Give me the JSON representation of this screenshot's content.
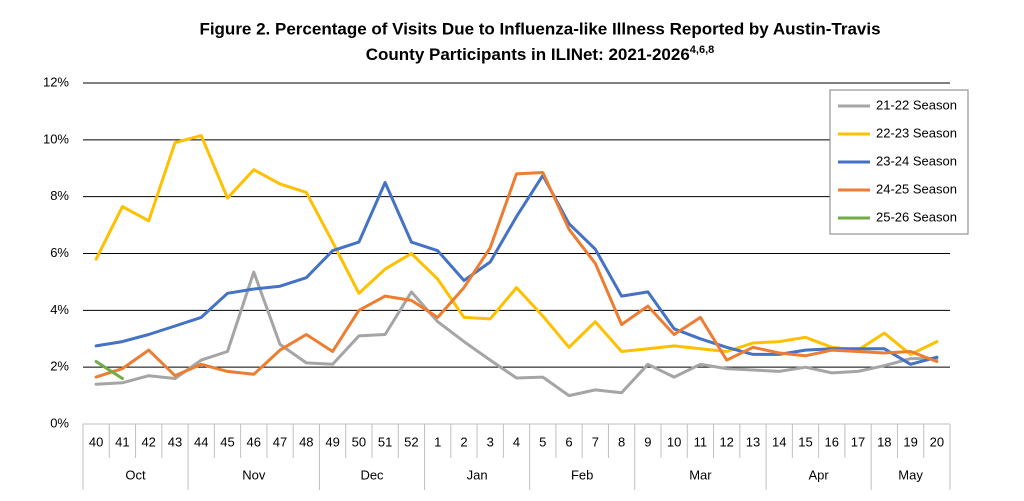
{
  "chart_data": {
    "type": "line",
    "title": [
      "Figure 2. Percentage of Visits Due to Influenza-like Illness Reported by Austin-Travis",
      "County Participants in ILINet: 2021-2026"
    ],
    "title_superscript": "4,6,8",
    "categories": [
      "40",
      "41",
      "42",
      "43",
      "44",
      "45",
      "46",
      "47",
      "48",
      "49",
      "50",
      "51",
      "52",
      "1",
      "2",
      "3",
      "4",
      "5",
      "6",
      "7",
      "8",
      "9",
      "10",
      "11",
      "12",
      "13",
      "14",
      "15",
      "16",
      "17",
      "18",
      "19",
      "20"
    ],
    "x_groups": [
      "Oct",
      "Oct",
      "Oct",
      "Oct",
      "Nov",
      "Nov",
      "Nov",
      "Nov",
      "Nov",
      "Dec",
      "Dec",
      "Dec",
      "Dec",
      "Jan",
      "Jan",
      "Jan",
      "Jan",
      "Feb",
      "Feb",
      "Feb",
      "Feb",
      "Mar",
      "Mar",
      "Mar",
      "Mar",
      "Mar",
      "Apr",
      "Apr",
      "Apr",
      "Apr",
      "May",
      "May",
      "May"
    ],
    "series": [
      {
        "name": "21-22 Season",
        "color": "#a5a5a5",
        "values": [
          1.4,
          1.45,
          1.7,
          1.6,
          2.25,
          2.55,
          5.35,
          2.8,
          2.15,
          2.1,
          3.1,
          3.15,
          4.65,
          3.6,
          2.9,
          2.25,
          1.62,
          1.65,
          1.0,
          1.2,
          1.1,
          2.1,
          1.65,
          2.1,
          1.95,
          1.9,
          1.85,
          2.0,
          1.8,
          1.85,
          2.05,
          2.3,
          2.3
        ]
      },
      {
        "name": "22-23 Season",
        "color": "#ffc000",
        "values": [
          5.8,
          7.65,
          7.15,
          9.9,
          10.15,
          7.95,
          8.95,
          8.45,
          8.15,
          6.4,
          4.6,
          5.45,
          6.0,
          5.1,
          3.75,
          3.7,
          4.8,
          3.8,
          2.7,
          3.6,
          2.55,
          2.65,
          2.75,
          2.65,
          2.55,
          2.85,
          2.9,
          3.05,
          2.7,
          2.6,
          3.2,
          2.45,
          2.9
        ]
      },
      {
        "name": "23-24 Season",
        "color": "#4472c4",
        "values": [
          2.75,
          2.9,
          3.15,
          3.45,
          3.75,
          4.6,
          4.75,
          4.85,
          5.15,
          6.1,
          6.4,
          8.5,
          6.4,
          6.1,
          5.05,
          5.7,
          7.3,
          8.75,
          7.05,
          6.15,
          4.5,
          4.65,
          3.35,
          3.0,
          2.7,
          2.45,
          2.45,
          2.6,
          2.65,
          2.65,
          2.65,
          2.1,
          2.35
        ]
      },
      {
        "name": "24-25 Season",
        "color": "#ed7d31",
        "values": [
          1.65,
          1.95,
          2.6,
          1.7,
          2.1,
          1.85,
          1.75,
          2.6,
          3.15,
          2.55,
          4.0,
          4.5,
          4.35,
          3.75,
          4.8,
          6.2,
          8.8,
          8.85,
          6.85,
          5.65,
          3.5,
          4.15,
          3.15,
          3.75,
          2.25,
          2.7,
          2.5,
          2.4,
          2.6,
          2.55,
          2.5,
          2.55,
          2.2
        ]
      },
      {
        "name": "25-26 Season",
        "color": "#70ad47",
        "values": [
          2.2,
          1.6,
          null,
          null,
          null,
          null,
          null,
          null,
          null,
          null,
          null,
          null,
          null,
          null,
          null,
          null,
          null,
          null,
          null,
          null,
          null,
          null,
          null,
          null,
          null,
          null,
          null,
          null,
          null,
          null,
          null,
          null,
          null
        ]
      }
    ],
    "ylim": [
      0,
      12
    ],
    "yticks": [
      {
        "value": 0,
        "label": "0%"
      },
      {
        "value": 2,
        "label": "2%"
      },
      {
        "value": 4,
        "label": "4%"
      },
      {
        "value": 6,
        "label": "6%"
      },
      {
        "value": 8,
        "label": "8%"
      },
      {
        "value": 10,
        "label": "10%"
      },
      {
        "value": 12,
        "label": "12%"
      }
    ],
    "grid": true,
    "legend": "top-right"
  }
}
